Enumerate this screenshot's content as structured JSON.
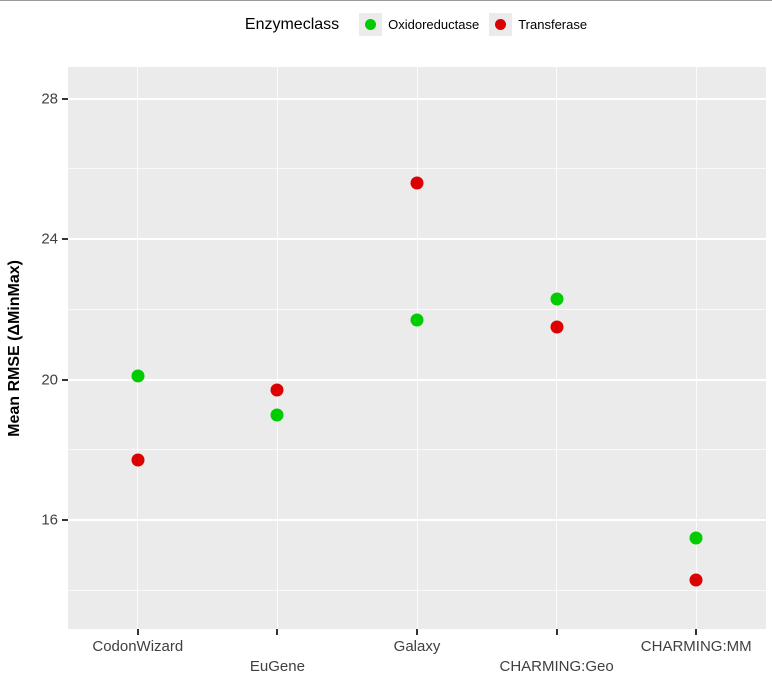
{
  "chart_data": {
    "type": "scatter",
    "title": "",
    "xlabel": "",
    "ylabel": "Mean RMSE (ΔMinMax)",
    "legend": {
      "title": "Enzymeclass",
      "position": "top",
      "entries": [
        {
          "label": "Oxidoreductase",
          "color": "#00CC00"
        },
        {
          "label": "Transferase",
          "color": "#DD0000"
        }
      ]
    },
    "categories": [
      "CodonWizard",
      "EuGene",
      "Galaxy",
      "CHARMING:Geo",
      "CHARMING:MM"
    ],
    "series": [
      {
        "name": "Oxidoreductase",
        "color": "#00CC00",
        "values": [
          20.1,
          19.0,
          21.7,
          22.3,
          15.5
        ]
      },
      {
        "name": "Transferase",
        "color": "#DD0000",
        "values": [
          17.7,
          19.7,
          25.6,
          21.5,
          14.3
        ]
      }
    ],
    "ylim": [
      12.9,
      28.9
    ],
    "yticks": [
      16,
      20,
      24,
      28
    ],
    "yticks_minor": [
      14,
      18,
      22,
      26
    ],
    "grid": true,
    "panel_background": "#EBEBEB",
    "grid_color": "#FFFFFF"
  }
}
